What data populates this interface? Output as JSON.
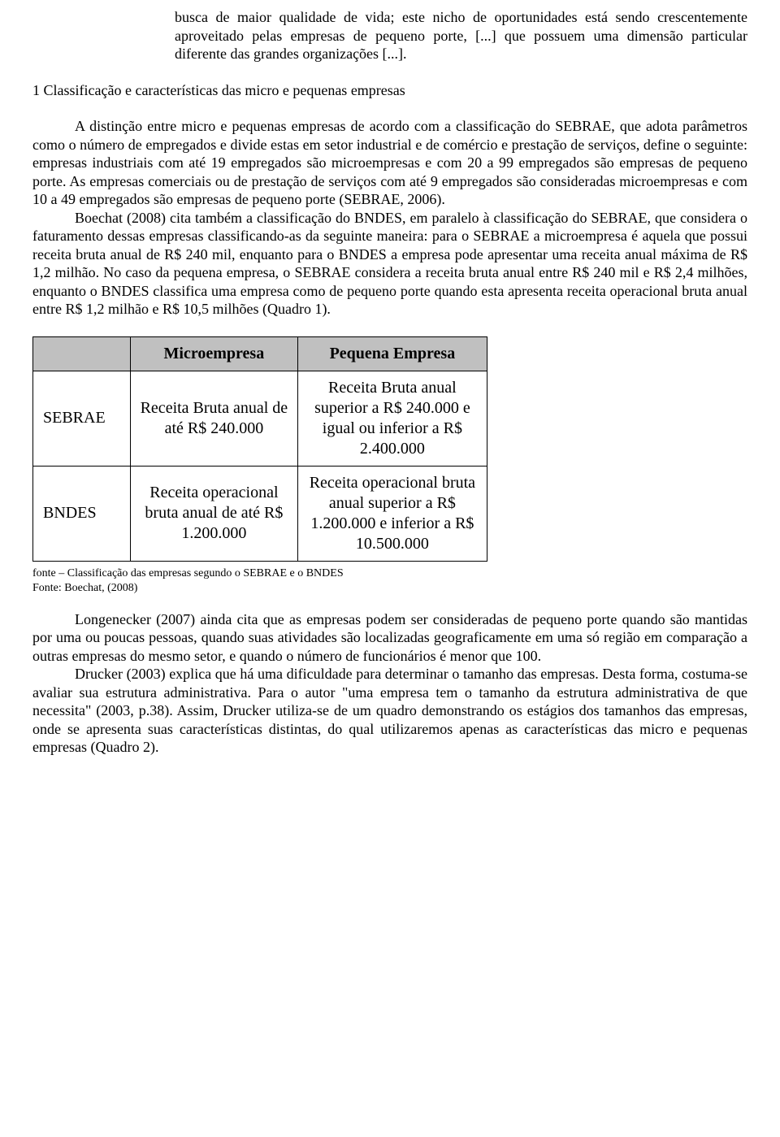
{
  "quote": {
    "text": "busca de maior qualidade de vida; este nicho de oportunidades está sendo crescentemente aproveitado pelas empresas de pequeno porte, [...] que possuem uma dimensão particular diferente das grandes organizações [...]."
  },
  "section": {
    "heading": "1 Classificação e características das micro e pequenas empresas"
  },
  "paragraphs": {
    "p1": "A distinção entre micro e pequenas empresas de acordo com a classificação do SEBRAE, que adota parâmetros como o número de empregados e divide estas em setor industrial e de comércio e prestação de serviços, define o seguinte: empresas industriais com até 19 empregados são microempresas e com 20 a 99 empregados são empresas de pequeno porte. As empresas comerciais ou de prestação de serviços com até 9 empregados são consideradas microempresas e com 10 a 49 empregados são empresas de pequeno porte (SEBRAE, 2006).",
    "p2": "Boechat (2008) cita também a classificação do BNDES, em paralelo à classificação do SEBRAE, que considera o faturamento dessas empresas classificando-as da seguinte maneira: para o SEBRAE a microempresa é aquela que possui receita bruta anual de R$ 240 mil, enquanto para o BNDES a empresa pode apresentar uma receita anual máxima de R$ 1,2 milhão. No caso da pequena empresa, o SEBRAE considera a receita bruta anual entre R$ 240 mil e R$ 2,4 milhões, enquanto o BNDES classifica uma empresa como de pequeno porte quando esta apresenta receita operacional bruta anual entre R$ 1,2 milhão e R$ 10,5 milhões (Quadro 1).",
    "p3": "Longenecker (2007) ainda cita que as empresas podem ser consideradas de pequeno porte quando são mantidas por uma ou poucas pessoas, quando suas atividades são localizadas geograficamente em uma só região em comparação a outras empresas do mesmo setor, e quando o número de funcionários é menor que 100.",
    "p4": "Drucker (2003) explica que há uma dificuldade para determinar o tamanho das empresas. Desta forma, costuma-se avaliar sua estrutura administrativa. Para o autor \"uma empresa tem o tamanho da estrutura administrativa de que necessita\" (2003, p.38). Assim, Drucker utiliza-se de um quadro demonstrando os estágios dos tamanhos das empresas, onde se apresenta suas características distintas, do qual utilizaremos apenas as características das micro e pequenas empresas (Quadro 2)."
  },
  "table": {
    "header_bg": "#c0c0c0",
    "border_color": "#000000",
    "columns": [
      "",
      "Microempresa",
      "Pequena Empresa"
    ],
    "rows": [
      {
        "label": "SEBRAE",
        "micro": "Receita Bruta anual de até R$ 240.000",
        "pequena": "Receita Bruta anual superior a R$ 240.000 e igual ou inferior a R$ 2.400.000"
      },
      {
        "label": "BNDES",
        "micro": "Receita operacional bruta anual de até R$ 1.200.000",
        "pequena": "Receita operacional bruta anual superior a R$ 1.200.000 e inferior a R$ 10.500.000"
      }
    ]
  },
  "caption": {
    "line1": "fonte – Classificação das empresas segundo o SEBRAE e o BNDES",
    "line2": "Fonte: Boechat, (2008)"
  }
}
